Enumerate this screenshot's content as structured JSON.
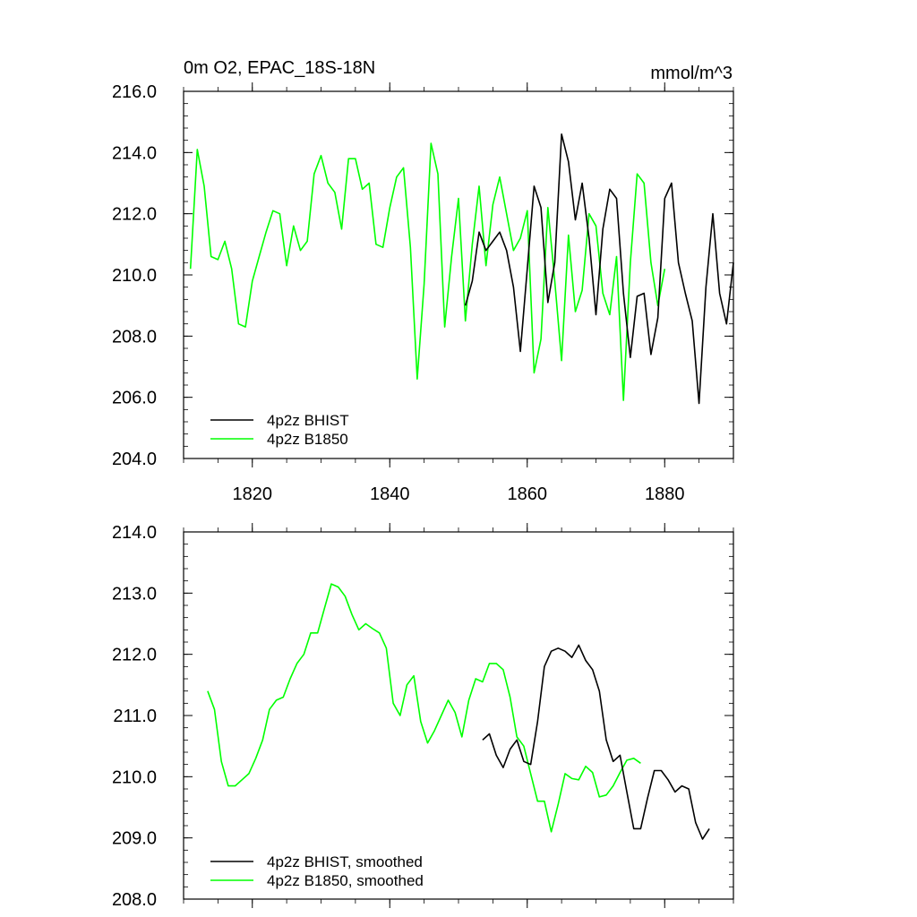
{
  "colors": {
    "bhist": "#000000",
    "b1850": "#00ff00"
  },
  "chart_data": [
    {
      "type": "line",
      "title": "0m O2, EPAC_18S-18N",
      "units": "mmol/m^3",
      "xlim": [
        1810,
        1890
      ],
      "ylim": [
        204,
        216
      ],
      "xticks": [
        1820,
        1840,
        1860,
        1880
      ],
      "xtick_labels": [
        "1820",
        "1840",
        "1860",
        "1880"
      ],
      "yticks": [
        204,
        206,
        208,
        210,
        212,
        214,
        216
      ],
      "ytick_labels": [
        "204.0",
        "206.0",
        "208.0",
        "210.0",
        "212.0",
        "214.0",
        "216.0"
      ],
      "legend_position": "bottom-left",
      "series": [
        {
          "name": "4p2z BHIST",
          "color": "#000000",
          "x_start": 1851,
          "x_step": 1,
          "values": [
            209.0,
            209.8,
            211.4,
            210.8,
            211.1,
            211.4,
            210.8,
            209.6,
            207.5,
            210.2,
            212.9,
            212.2,
            209.1,
            210.4,
            214.6,
            213.7,
            211.8,
            213.0,
            211.2,
            208.7,
            211.5,
            212.8,
            212.5,
            209.4,
            207.3,
            209.3,
            209.4,
            207.4,
            208.6,
            212.5,
            213.0,
            210.4,
            209.4,
            208.5,
            205.8,
            209.6,
            212.0,
            209.4,
            208.4,
            210.4
          ]
        },
        {
          "name": "4p2z B1850",
          "color": "#00ff00",
          "x_start": 1811,
          "x_step": 1,
          "values": [
            210.2,
            214.1,
            212.9,
            210.6,
            210.5,
            211.1,
            210.2,
            208.4,
            208.3,
            209.8,
            210.6,
            211.4,
            212.1,
            212.0,
            210.3,
            211.6,
            210.8,
            211.1,
            213.3,
            213.9,
            213.0,
            212.7,
            211.5,
            213.8,
            213.8,
            212.8,
            213.0,
            211.0,
            210.9,
            212.2,
            213.2,
            213.5,
            210.9,
            206.6,
            209.7,
            214.3,
            213.3,
            208.3,
            210.6,
            212.5,
            208.5,
            211.0,
            212.9,
            210.3,
            212.3,
            213.2,
            212.0,
            210.8,
            211.2,
            212.1,
            206.8,
            207.9,
            212.2,
            209.8,
            207.2,
            211.3,
            208.8,
            209.5,
            212.0,
            211.6,
            209.4,
            208.7,
            210.6,
            205.9,
            210.4,
            213.3,
            213.0,
            210.4,
            209.0,
            210.2
          ]
        }
      ]
    },
    {
      "type": "line",
      "xlim": [
        1810,
        1890
      ],
      "ylim": [
        208,
        214
      ],
      "xticks": [
        1820,
        1840,
        1860,
        1880
      ],
      "yticks": [
        208,
        209,
        210,
        211,
        212,
        213,
        214
      ],
      "ytick_labels": [
        "208.0",
        "209.0",
        "210.0",
        "211.0",
        "212.0",
        "213.0",
        "214.0"
      ],
      "legend_position": "bottom-left",
      "series": [
        {
          "name": "4p2z BHIST, smoothed",
          "color": "#000000",
          "x_start": 1853.5,
          "x_step": 1,
          "values": [
            210.6,
            210.7,
            210.35,
            210.15,
            210.45,
            210.6,
            210.25,
            210.2,
            210.9,
            211.8,
            212.05,
            212.1,
            212.05,
            211.95,
            212.15,
            211.9,
            211.75,
            211.4,
            210.6,
            210.25,
            210.35,
            209.75,
            209.15,
            209.15,
            209.65,
            210.1,
            210.1,
            209.95,
            209.75,
            209.85,
            209.8,
            209.25,
            208.98,
            209.15
          ]
        },
        {
          "name": "4p2z B1850, smoothed",
          "color": "#00ff00",
          "x_start": 1813.5,
          "x_step": 1,
          "values": [
            211.4,
            211.1,
            210.25,
            209.85,
            209.85,
            209.95,
            210.05,
            210.3,
            210.6,
            211.1,
            211.25,
            211.3,
            211.6,
            211.85,
            212.0,
            212.35,
            212.35,
            212.75,
            213.15,
            213.1,
            212.95,
            212.65,
            212.4,
            212.5,
            212.42,
            212.35,
            212.1,
            211.2,
            211.0,
            211.5,
            211.65,
            210.9,
            210.55,
            210.75,
            211.0,
            211.25,
            211.05,
            210.65,
            211.25,
            211.6,
            211.55,
            211.85,
            211.85,
            211.75,
            211.3,
            210.65,
            210.5,
            210.05,
            209.6,
            209.6,
            209.1,
            209.55,
            210.05,
            209.97,
            209.95,
            210.17,
            210.07,
            209.67,
            209.7,
            209.85,
            210.07,
            210.27,
            210.3,
            210.22
          ]
        }
      ]
    }
  ]
}
